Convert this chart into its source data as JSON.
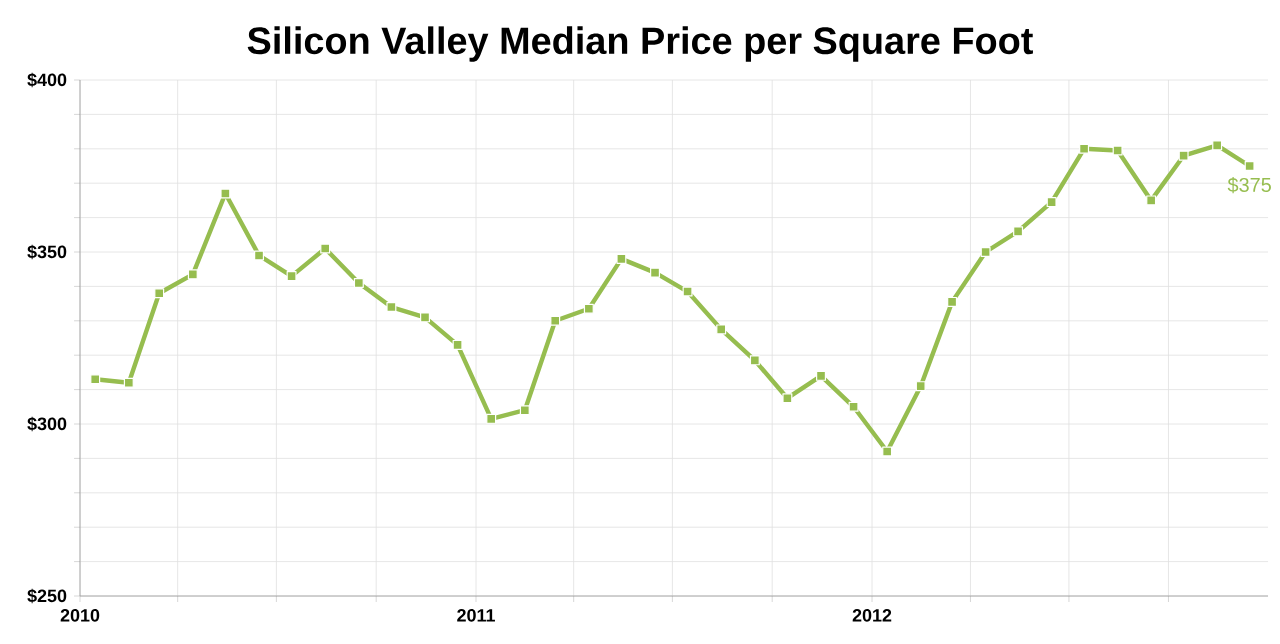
{
  "chart_data": {
    "type": "line",
    "title": "Silicon Valley Median Price per Square Foot",
    "x": [
      "2010-01-15",
      "2010-02-15",
      "2010-03-15",
      "2010-04-15",
      "2010-05-15",
      "2010-06-15",
      "2010-07-15",
      "2010-08-15",
      "2010-09-15",
      "2010-10-15",
      "2010-11-15",
      "2010-12-15",
      "2011-01-15",
      "2011-02-15",
      "2011-03-15",
      "2011-04-15",
      "2011-05-15",
      "2011-06-15",
      "2011-07-15",
      "2011-08-15",
      "2011-09-15",
      "2011-10-15",
      "2011-11-15",
      "2011-12-15",
      "2012-01-15",
      "2012-02-15",
      "2012-03-15",
      "2012-04-15",
      "2012-05-15",
      "2012-06-15",
      "2012-07-15",
      "2012-08-15",
      "2012-09-15",
      "2012-10-15",
      "2012-11-15",
      "2012-12-15"
    ],
    "series": [
      {
        "color": "#96bd4f",
        "values": [
          313,
          312,
          338,
          343.5,
          367,
          349,
          343,
          351,
          341,
          334,
          331,
          323,
          301.5,
          304,
          330,
          333.5,
          348,
          344,
          338.5,
          327.5,
          318.5,
          307.5,
          314,
          305,
          292,
          311,
          335.5,
          350,
          356,
          364.5,
          380,
          379.5,
          365,
          378,
          381,
          375
        ]
      }
    ],
    "xlim": [
      "2010",
      "2013"
    ],
    "xticks": [
      "2010",
      {
        "value": "2010-04",
        "label": null
      },
      {
        "value": "2010-07",
        "label": null
      },
      {
        "value": "2010-10",
        "label": null
      },
      "2011",
      {
        "value": "2011-04",
        "label": null
      },
      {
        "value": "2011-07",
        "label": null
      },
      {
        "value": "2011-10",
        "label": null
      },
      "2012",
      {
        "value": "2012-04",
        "label": null
      },
      {
        "value": "2012-07",
        "label": null
      },
      {
        "value": "2012-10",
        "label": null
      }
    ],
    "ylim": [
      250,
      400
    ],
    "yticks": [
      {
        "value": 250,
        "label": "$250"
      },
      {
        "value": 260,
        "label": null
      },
      {
        "value": 270,
        "label": null
      },
      {
        "value": 280,
        "label": null
      },
      {
        "value": 290,
        "label": null
      },
      {
        "value": 300,
        "label": "$300"
      },
      {
        "value": 310,
        "label": null
      },
      {
        "value": 320,
        "label": null
      },
      {
        "value": 330,
        "label": null
      },
      {
        "value": 340,
        "label": null
      },
      {
        "value": 350,
        "label": "$350"
      },
      {
        "value": 360,
        "label": null
      },
      {
        "value": 370,
        "label": null
      },
      {
        "value": 380,
        "label": null
      },
      {
        "value": 390,
        "label": null
      },
      {
        "value": 400,
        "label": "$400"
      }
    ],
    "grid": true,
    "marker": "square",
    "line_style": "solid",
    "annotations": [
      {
        "text": "$375",
        "x": "2012-12-15",
        "y": 375
      }
    ]
  }
}
